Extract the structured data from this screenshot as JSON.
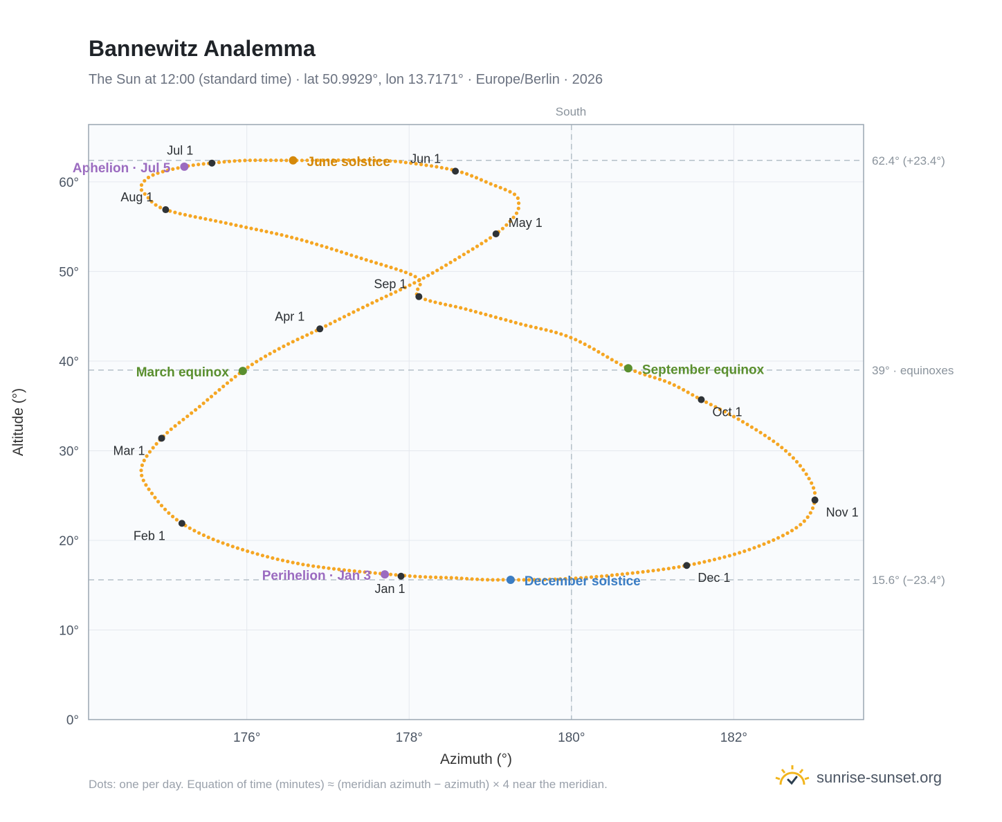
{
  "header": {
    "title": "Bannewitz Analemma",
    "subtitle": "The Sun at 12:00 (standard time) · lat 50.9929°, lon 13.7171° · Europe/Berlin · 2026"
  },
  "footer": {
    "note": "Dots: one per day. Equation of time (minutes) ≈ (meridian azimuth − azimuth) × 4 near the meridian.",
    "brand": "sunrise-sunset.org"
  },
  "colors": {
    "path": "#f5a623",
    "month_dot": "#2f3337",
    "june_solstice": "#d4880a",
    "december_solstice": "#3b7dc4",
    "equinox": "#5a8f2e",
    "apsis": "#9b6bc0",
    "plot_bg": "#f9fbfd",
    "grid": "#e4e8ee",
    "reference_line": "#b4bfc8"
  },
  "chart_data": {
    "type": "scatter",
    "title": "Bannewitz Analemma",
    "xlabel": "Azimuth (°)",
    "ylabel": "Altitude (°)",
    "xlim": [
      174.05,
      183.6
    ],
    "ylim": [
      0,
      66.4
    ],
    "x_ticks": [
      176,
      178,
      180,
      182
    ],
    "y_ticks": [
      0,
      10,
      20,
      30,
      40,
      50,
      60
    ],
    "x_tick_labels": [
      "176°",
      "178°",
      "180°",
      "182°"
    ],
    "y_tick_labels": [
      "0°",
      "10°",
      "20°",
      "30°",
      "40°",
      "50°",
      "60°"
    ],
    "grid": true,
    "meridian": {
      "azimuth": 180,
      "label": "South"
    },
    "reference_lines": [
      {
        "altitude": 62.4,
        "label": "62.4° (+23.4°)"
      },
      {
        "altitude": 39.0,
        "label": "39° · equinoxes"
      },
      {
        "altitude": 15.6,
        "label": "15.6° (−23.4°)"
      }
    ],
    "path_points": [
      [
        177.9,
        16.1
      ],
      [
        176.7,
        17.3
      ],
      [
        175.8,
        19.4
      ],
      [
        175.2,
        21.9
      ],
      [
        174.85,
        25.0
      ],
      [
        174.7,
        28.0
      ],
      [
        174.95,
        31.4
      ],
      [
        175.4,
        34.8
      ],
      [
        175.95,
        38.9
      ],
      [
        176.4,
        41.4
      ],
      [
        176.9,
        43.6
      ],
      [
        177.5,
        46.3
      ],
      [
        178.1,
        48.9
      ],
      [
        178.6,
        51.5
      ],
      [
        179.07,
        54.2
      ],
      [
        179.3,
        56.2
      ],
      [
        179.35,
        57.4
      ],
      [
        179.3,
        58.6
      ],
      [
        179.0,
        59.8
      ],
      [
        178.6,
        61.2
      ],
      [
        178.1,
        62.0
      ],
      [
        177.6,
        62.4
      ],
      [
        176.57,
        62.4
      ],
      [
        176.0,
        62.4
      ],
      [
        175.57,
        62.1
      ],
      [
        175.23,
        61.7
      ],
      [
        174.85,
        60.8
      ],
      [
        174.7,
        59.6
      ],
      [
        174.75,
        58.6
      ],
      [
        175.0,
        56.9
      ],
      [
        175.8,
        55.3
      ],
      [
        176.6,
        53.7
      ],
      [
        177.4,
        51.5
      ],
      [
        178.1,
        49.3
      ],
      [
        178.12,
        47.2
      ],
      [
        178.7,
        45.8
      ],
      [
        179.35,
        44.2
      ],
      [
        180.0,
        42.6
      ],
      [
        180.7,
        39.2
      ],
      [
        181.2,
        37.6
      ],
      [
        181.6,
        35.7
      ],
      [
        182.1,
        33.3
      ],
      [
        182.6,
        30.3
      ],
      [
        182.9,
        27.3
      ],
      [
        183.0,
        24.5
      ],
      [
        182.8,
        21.6
      ],
      [
        182.2,
        19.0
      ],
      [
        181.42,
        17.2
      ],
      [
        180.6,
        16.2
      ],
      [
        179.9,
        15.7
      ],
      [
        179.25,
        15.6
      ],
      [
        178.6,
        15.8
      ],
      [
        177.9,
        16.1
      ]
    ],
    "month_markers": [
      {
        "label": "Jan 1",
        "x": 177.9,
        "y": 16.0,
        "anchor": "below"
      },
      {
        "label": "Feb 1",
        "x": 175.2,
        "y": 21.9,
        "anchor": "below-left"
      },
      {
        "label": "Mar 1",
        "x": 174.95,
        "y": 31.4,
        "anchor": "below-left"
      },
      {
        "label": "Apr 1",
        "x": 176.9,
        "y": 43.6,
        "anchor": "above-left"
      },
      {
        "label": "May 1",
        "x": 179.07,
        "y": 54.2,
        "anchor": "above-right"
      },
      {
        "label": "Jun 1",
        "x": 178.57,
        "y": 61.2,
        "anchor": "above-left"
      },
      {
        "label": "Jul 1",
        "x": 175.57,
        "y": 62.1,
        "anchor": "above-left"
      },
      {
        "label": "Aug 1",
        "x": 175.0,
        "y": 56.9,
        "anchor": "above-left"
      },
      {
        "label": "Sep 1",
        "x": 178.12,
        "y": 47.2,
        "anchor": "above-left"
      },
      {
        "label": "Oct 1",
        "x": 181.6,
        "y": 35.7,
        "anchor": "below-right"
      },
      {
        "label": "Nov 1",
        "x": 183.0,
        "y": 24.5,
        "anchor": "below-right"
      },
      {
        "label": "Dec 1",
        "x": 181.42,
        "y": 17.2,
        "anchor": "below-right"
      }
    ],
    "events": [
      {
        "label": "June solstice",
        "x": 176.57,
        "y": 62.4,
        "color": "#d4880a",
        "anchor": "right"
      },
      {
        "label": "December solstice",
        "x": 179.25,
        "y": 15.6,
        "color": "#3b7dc4",
        "anchor": "right"
      },
      {
        "label": "March equinox",
        "x": 175.95,
        "y": 38.9,
        "color": "#5a8f2e",
        "anchor": "left"
      },
      {
        "label": "September equinox",
        "x": 180.7,
        "y": 39.2,
        "color": "#5a8f2e",
        "anchor": "right"
      },
      {
        "label": "Aphelion · Jul 5",
        "x": 175.23,
        "y": 61.7,
        "color": "#9b6bc0",
        "anchor": "left"
      },
      {
        "label": "Perihelion · Jan 3",
        "x": 177.7,
        "y": 16.2,
        "color": "#9b6bc0",
        "anchor": "left"
      }
    ]
  }
}
